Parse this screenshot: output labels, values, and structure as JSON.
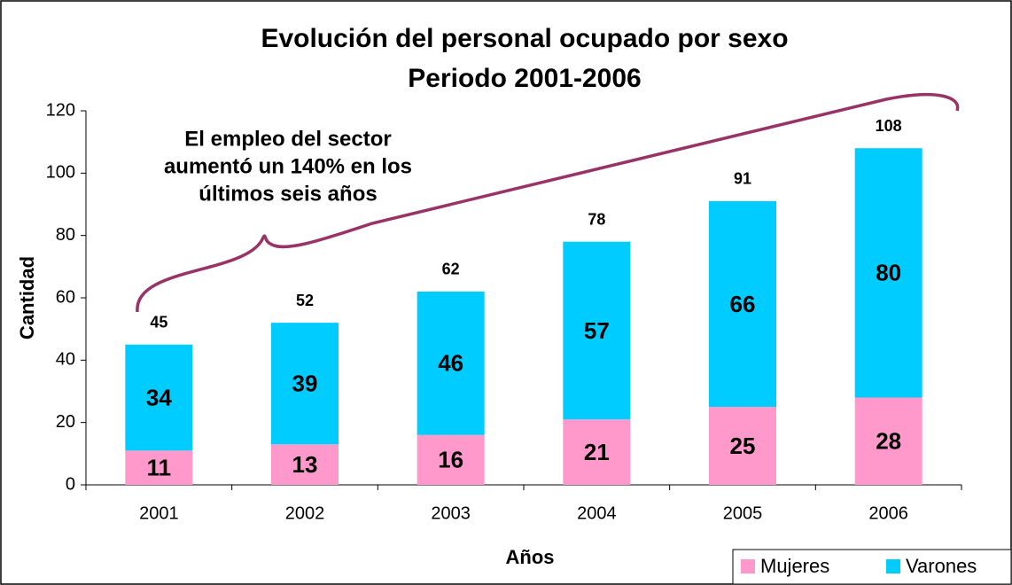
{
  "chart_data": {
    "type": "stacked_bar",
    "title": "Evolución del personal ocupado por sexo",
    "subtitle": "Periodo 2001-2006",
    "x_label": "Años",
    "y_label": "Cantidad",
    "annotation": [
      "El empleo del sector",
      "aumentó un 140% en los",
      "últimos seis años"
    ],
    "categories": [
      "2001",
      "2002",
      "2003",
      "2004",
      "2005",
      "2006"
    ],
    "series": [
      {
        "name": "Mujeres",
        "color": "#ff99cc",
        "values": [
          11,
          13,
          16,
          21,
          25,
          28
        ]
      },
      {
        "name": "Varones",
        "color": "#00ccff",
        "values": [
          34,
          39,
          46,
          57,
          66,
          80
        ]
      }
    ],
    "totals": [
      45,
      52,
      62,
      78,
      91,
      108
    ],
    "ylim": [
      0,
      120
    ],
    "yticks": [
      0,
      20,
      40,
      60,
      80,
      100,
      120
    ],
    "grid": false,
    "legend": "bottom-right"
  }
}
